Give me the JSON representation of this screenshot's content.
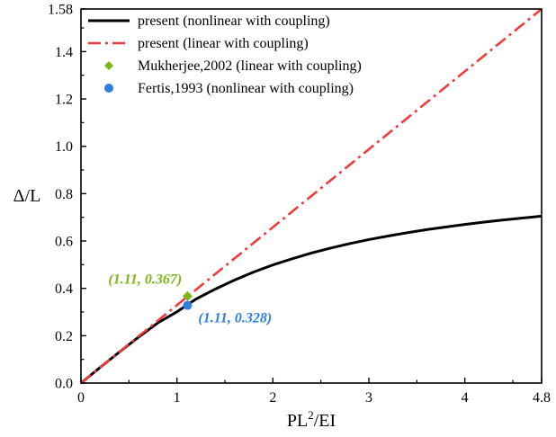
{
  "chart_data": {
    "type": "line",
    "xlabel": "PL²/EI",
    "ylabel": "Δ/L",
    "xlim": [
      0,
      4.8
    ],
    "ylim": [
      0,
      1.58
    ],
    "x_ticks": [
      0,
      1,
      2,
      3,
      4,
      4.8
    ],
    "x_tick_labels": [
      "0",
      "1",
      "2",
      "3",
      "4",
      "4.8"
    ],
    "y_ticks": [
      0,
      0.2,
      0.4,
      0.6,
      0.8,
      1.0,
      1.2,
      1.4,
      1.58
    ],
    "y_tick_labels": [
      "0.0",
      "0.2",
      "0.4",
      "0.6",
      "0.8",
      "1.0",
      "1.2",
      "1.4",
      "1.58"
    ],
    "grid": false,
    "legend_position": "top-left",
    "series": [
      {
        "name": "present (nonlinear with coupling)",
        "style": "solid-line",
        "color": "#000000",
        "x": [
          0,
          0.2,
          0.4,
          0.6,
          0.8,
          1.0,
          1.2,
          1.4,
          1.6,
          1.8,
          2.0,
          2.2,
          2.4,
          2.6,
          2.8,
          3.0,
          3.2,
          3.4,
          3.6,
          3.8,
          4.0,
          4.2,
          4.4,
          4.6,
          4.8
        ],
        "y": [
          0,
          0.066,
          0.131,
          0.194,
          0.254,
          0.301,
          0.355,
          0.397,
          0.435,
          0.469,
          0.499,
          0.525,
          0.549,
          0.57,
          0.589,
          0.606,
          0.621,
          0.635,
          0.648,
          0.659,
          0.67,
          0.68,
          0.689,
          0.697,
          0.705
        ]
      },
      {
        "name": "present (linear with coupling)",
        "style": "dash-dot-line",
        "color": "#ee3b3b",
        "x": [
          0,
          4.8
        ],
        "y": [
          0,
          1.58
        ]
      },
      {
        "name": "Mukherjee,2002 (linear with coupling)",
        "style": "diamond-marker",
        "color": "#7cb518",
        "x": [
          1.11
        ],
        "y": [
          0.367
        ]
      },
      {
        "name": "Fertis,1993 (nonlinear with coupling)",
        "style": "circle-marker",
        "color": "#2f7fdc",
        "x": [
          1.11
        ],
        "y": [
          0.328
        ]
      }
    ],
    "annotations": [
      {
        "text": "(1.11, 0.367)",
        "x": 1.11,
        "y": 0.367,
        "color": "#7cb518",
        "placement": "above-left"
      },
      {
        "text": "(1.11, 0.328)",
        "x": 1.11,
        "y": 0.328,
        "color": "#2f7fdc",
        "placement": "below-right"
      }
    ]
  }
}
